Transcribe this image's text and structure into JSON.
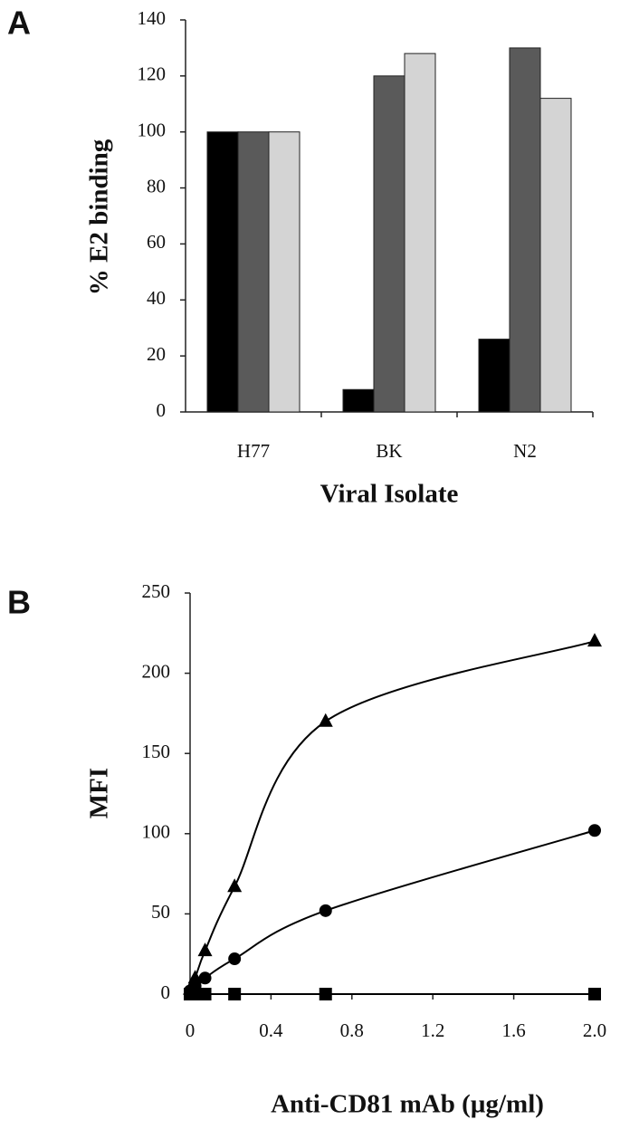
{
  "chart_data": [
    {
      "type": "bar",
      "panel_label": "A",
      "ylabel": "% E2 binding",
      "xlabel": "Viral Isolate",
      "categories": [
        "H77",
        "BK",
        "N2"
      ],
      "series": [
        {
          "color": "#000000",
          "values": [
            100,
            8,
            26
          ]
        },
        {
          "color": "#5a5a5a",
          "values": [
            100,
            120,
            130
          ]
        },
        {
          "color": "#d4d4d4",
          "values": [
            100,
            128,
            112
          ]
        }
      ],
      "ylim": [
        0,
        140
      ],
      "yticks": [
        0,
        20,
        40,
        60,
        80,
        100,
        120,
        140
      ],
      "grid": false
    },
    {
      "type": "line",
      "panel_label": "B",
      "ylabel": "MFI",
      "xlabel": "Anti-CD81 mAb (µg/ml)",
      "x": [
        0,
        0.025,
        0.074,
        0.22,
        0.67,
        2.0
      ],
      "series": [
        {
          "color": "#000000",
          "marker": "triangle",
          "values": [
            3,
            10,
            27,
            67,
            170,
            220
          ]
        },
        {
          "color": "#000000",
          "marker": "circle",
          "values": [
            2,
            5,
            10,
            22,
            52,
            102
          ]
        },
        {
          "color": "#000000",
          "marker": "square",
          "values": [
            0,
            0,
            0,
            0,
            0,
            0
          ]
        }
      ],
      "xlim": [
        0,
        2.0
      ],
      "xticks": [
        0,
        0.4,
        0.8,
        1.2,
        {
          "value": 1.6,
          "label": "1.6"
        },
        {
          "value": 2.0,
          "label": "2.0"
        }
      ],
      "ylim": [
        0,
        250
      ],
      "yticks": [
        0,
        50,
        100,
        150,
        200,
        250
      ],
      "grid": false
    }
  ]
}
